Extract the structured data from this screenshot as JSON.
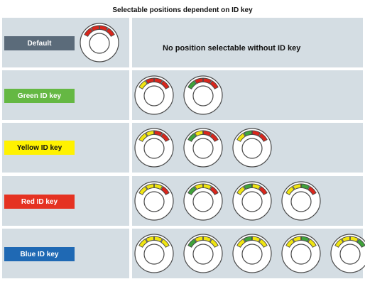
{
  "title": "Selectable positions dependent on ID key",
  "colors": {
    "row_bg": "#d4dde3",
    "dial_red": "#d9261c",
    "dial_green": "#3fa33a",
    "dial_yellow": "#f0e511",
    "dial_outline": "#4a4a4a"
  },
  "rows": [
    {
      "label": "Default",
      "label_color": "#5b6b7a",
      "label_text_color": "#ffffff",
      "note": "No position selectable without ID key",
      "dials": [
        [
          "red",
          "red",
          "red",
          "red"
        ]
      ]
    },
    {
      "label": "Green ID key",
      "label_color": "#65b843",
      "label_text_color": "#ffffff",
      "dials": [
        [
          "yellow",
          "red",
          "red",
          "red"
        ],
        [
          "green",
          "red",
          "red",
          "red"
        ]
      ]
    },
    {
      "label": "Yellow ID key",
      "label_color": "#fff200",
      "label_text_color": "#111111",
      "dials": [
        [
          "yellow",
          "yellow",
          "red",
          "red"
        ],
        [
          "green",
          "yellow",
          "red",
          "red"
        ],
        [
          "yellow",
          "green",
          "red",
          "red"
        ]
      ]
    },
    {
      "label": "Red ID key",
      "label_color": "#e53222",
      "label_text_color": "#ffffff",
      "dials": [
        [
          "yellow",
          "yellow",
          "yellow",
          "red"
        ],
        [
          "green",
          "yellow",
          "yellow",
          "red"
        ],
        [
          "yellow",
          "green",
          "yellow",
          "red"
        ],
        [
          "yellow",
          "yellow",
          "green",
          "red"
        ]
      ]
    },
    {
      "label": "Blue ID key",
      "label_color": "#1f69b4",
      "label_text_color": "#ffffff",
      "dials": [
        [
          "yellow",
          "yellow",
          "yellow",
          "yellow"
        ],
        [
          "green",
          "yellow",
          "yellow",
          "yellow"
        ],
        [
          "yellow",
          "green",
          "yellow",
          "yellow"
        ],
        [
          "yellow",
          "yellow",
          "green",
          "yellow"
        ],
        [
          "yellow",
          "yellow",
          "yellow",
          "green"
        ]
      ]
    }
  ]
}
